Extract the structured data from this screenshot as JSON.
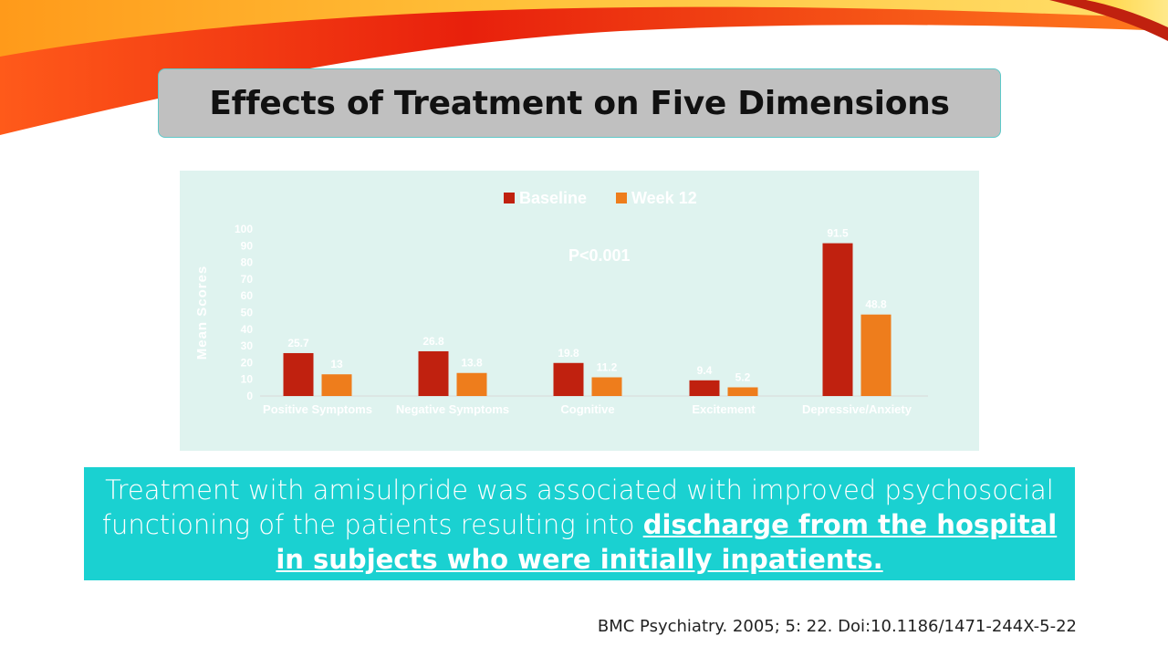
{
  "slide": {
    "title": "Effects of Treatment on Five Dimensions",
    "summary_plain": "Treatment with amisulpride was associated with improved psychosocial functioning of the patients resulting into ",
    "summary_emphasis": "discharge from the hospital in subjects who were initially inpatients.",
    "citation": "BMC Psychiatry. 2005; 5: 22. Doi:10.1186/1471-244X-5-22"
  },
  "colors": {
    "baseline": "#c0210f",
    "week12": "#ee7d1c",
    "chart_background": "#dff3ef",
    "summary_background": "#1ad1d1",
    "title_background": "#c0c0c0"
  },
  "chart_data": {
    "type": "bar",
    "title": "",
    "categories": [
      "Positive Symptoms",
      "Negative Symptoms",
      "Cognitive",
      "Excitement",
      "Depressive/Anxiety"
    ],
    "series": [
      {
        "name": "Baseline",
        "values": [
          25.7,
          26.8,
          19.8,
          9.4,
          91.5
        ]
      },
      {
        "name": "Week 12",
        "values": [
          13,
          13.8,
          11.2,
          5.2,
          48.8
        ]
      }
    ],
    "data_labels": [
      [
        "25.7",
        "26.8",
        "19.8",
        "9.4",
        "91.5"
      ],
      [
        "13",
        "13.8",
        "11.2",
        "5.2",
        "48.8"
      ]
    ],
    "xlabel": "",
    "ylabel": "Mean Scores",
    "ylim": [
      0,
      100
    ],
    "yticks": [
      0,
      10,
      20,
      30,
      40,
      50,
      60,
      70,
      80,
      90,
      100
    ],
    "annotation": "P<0.001",
    "legend_position": "top",
    "grid": false
  }
}
